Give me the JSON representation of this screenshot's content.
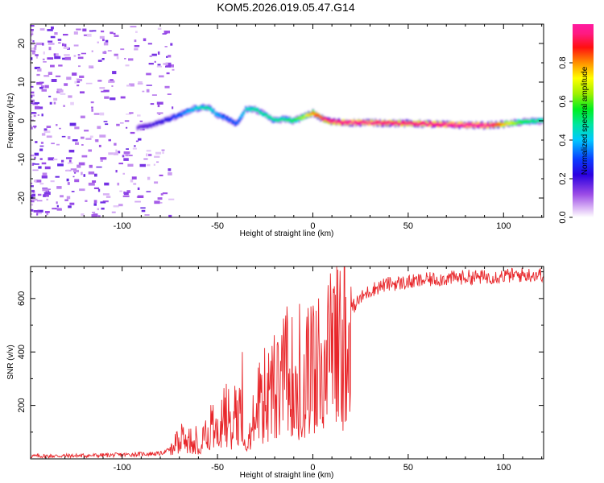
{
  "title": "KOM5.2026.019.05.47.G14",
  "colors": {
    "snr_line": "#e8262a",
    "background": "#ffffff",
    "axis": "#000000"
  },
  "chart_data": [
    {
      "type": "heatmap",
      "name": "spectrogram",
      "xlabel": "Height of straight line (km)",
      "ylabel": "Frequency (Hz)",
      "xlim": [
        -148,
        121
      ],
      "ylim": [
        -25,
        25
      ],
      "xticks": [
        -100,
        -50,
        0,
        50,
        100
      ],
      "yticks": [
        -20,
        -10,
        0,
        10,
        20
      ],
      "ridge": {
        "x": [
          -92,
          -85,
          -78,
          -70,
          -62,
          -55,
          -50,
          -45,
          -40,
          -35,
          -30,
          -25,
          -20,
          -15,
          -10,
          -5,
          0,
          5,
          10,
          20,
          30,
          40,
          50,
          60,
          70,
          80,
          90,
          100,
          110,
          121
        ],
        "freq": [
          -1.8,
          -1.2,
          0.0,
          1.5,
          3.2,
          3.5,
          1.5,
          0.5,
          -0.8,
          3.0,
          2.8,
          1.5,
          0.0,
          0.5,
          0.0,
          1.0,
          2.0,
          0.5,
          -0.3,
          -0.5,
          -0.5,
          -0.6,
          -0.7,
          -0.8,
          -1.0,
          -1.1,
          -1.2,
          -0.9,
          -0.3,
          0.0
        ],
        "amp": [
          0.15,
          0.18,
          0.22,
          0.3,
          0.4,
          0.45,
          0.35,
          0.3,
          0.3,
          0.42,
          0.45,
          0.45,
          0.45,
          0.45,
          0.5,
          0.6,
          0.75,
          0.85,
          0.9,
          0.95,
          0.93,
          0.9,
          0.9,
          0.92,
          0.95,
          0.98,
          1.0,
          0.7,
          0.5,
          0.45
        ]
      }
    },
    {
      "type": "colorbar",
      "name": "amplitude-colorbar",
      "label": "Normalized spectral amplitude",
      "range": [
        0,
        1
      ],
      "ticks": [
        "0.0",
        "0.2",
        "0.4",
        "0.6",
        "0.8"
      ],
      "tick_values": [
        0.0,
        0.2,
        0.4,
        0.6,
        0.8
      ]
    },
    {
      "type": "line",
      "name": "snr-plot",
      "xlabel": "Height of straight line (km)",
      "ylabel": "SNR (v/v)",
      "xlim": [
        -148,
        121
      ],
      "ylim": [
        0,
        720
      ],
      "xticks": [
        -100,
        -50,
        0,
        50,
        100
      ],
      "yticks": [
        200,
        400,
        600
      ],
      "series": [
        {
          "name": "SNR envelope",
          "x": [
            -148,
            -120,
            -100,
            -90,
            -80,
            -75,
            -72,
            -70,
            -65,
            -60,
            -55,
            -50,
            -45,
            -42,
            -40,
            -38,
            -35,
            -32,
            -30,
            -27,
            -25,
            -22,
            -20,
            -18,
            -15,
            -12,
            -10,
            -8,
            -5,
            -3,
            0,
            3,
            5,
            10,
            15,
            20,
            25,
            30,
            35,
            40,
            50,
            60,
            70,
            80,
            90,
            100,
            110,
            121
          ],
          "y": [
            10,
            12,
            15,
            18,
            20,
            35,
            70,
            90,
            100,
            80,
            130,
            170,
            200,
            160,
            240,
            220,
            80,
            140,
            260,
            230,
            300,
            290,
            330,
            300,
            380,
            420,
            360,
            300,
            350,
            400,
            420,
            430,
            460,
            490,
            520,
            560,
            600,
            630,
            645,
            655,
            660,
            670,
            675,
            680,
            680,
            685,
            688,
            690
          ]
        }
      ],
      "spikes": [
        {
          "x": -37,
          "y": 400
        },
        {
          "x": -28,
          "y": 360
        },
        {
          "x": -7,
          "y": 580
        },
        {
          "x": 3,
          "y": 600
        }
      ]
    }
  ]
}
